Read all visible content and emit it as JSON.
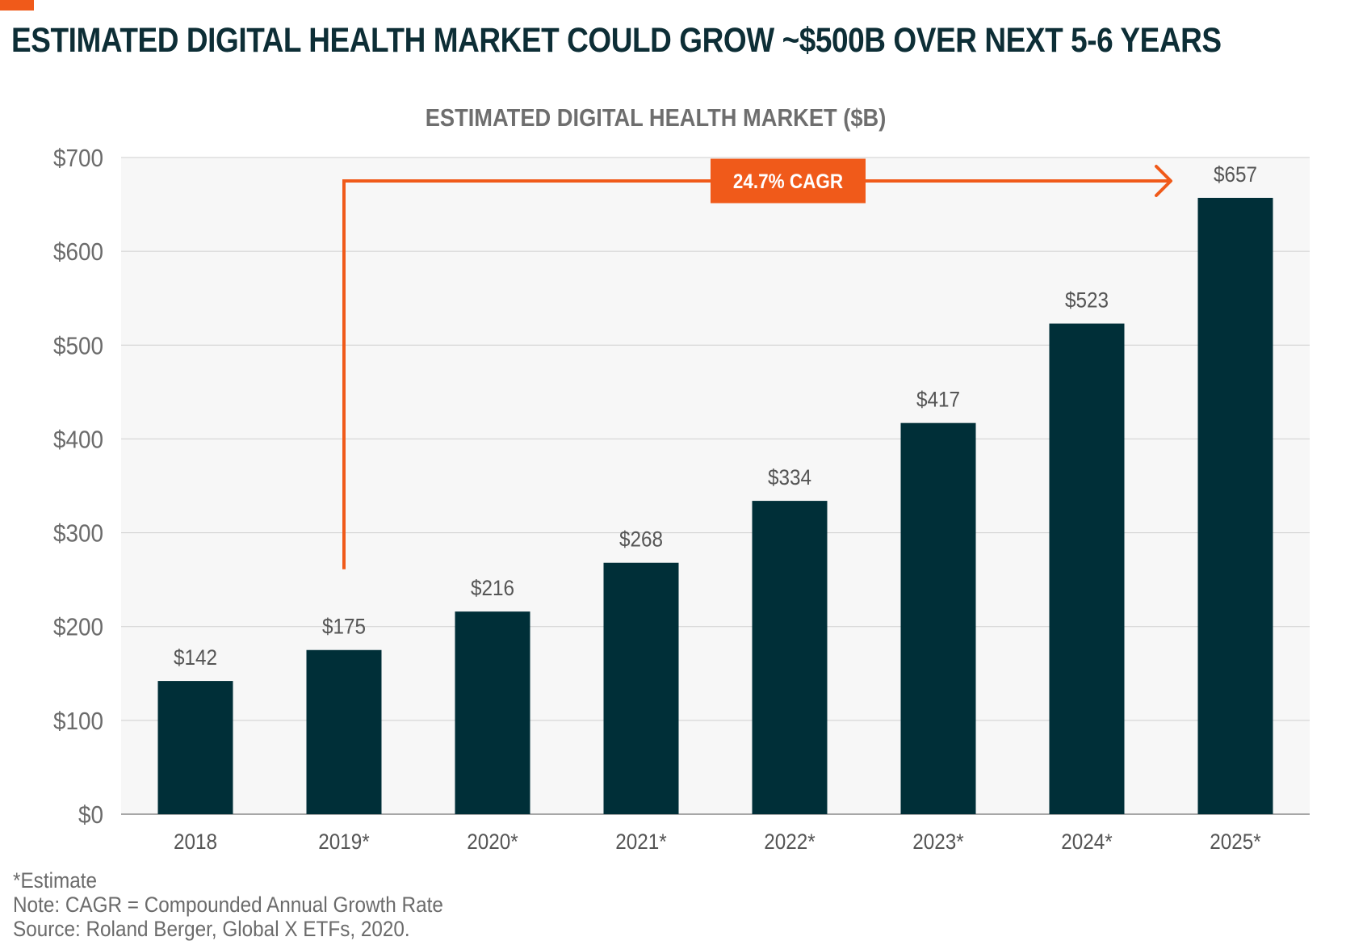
{
  "header": {
    "title": "ESTIMATED DIGITAL HEALTH MARKET COULD GROW ~$500B OVER NEXT 5-6 YEARS"
  },
  "colors": {
    "accent": "#f05a1a",
    "bar": "#002f38",
    "title": "#0d2e36",
    "gridline": "#cfcfcf",
    "plot_bg": "#f7f7f7"
  },
  "chart_data": {
    "type": "bar",
    "title": "ESTIMATED DIGITAL HEALTH MARKET ($B)",
    "xlabel": "",
    "ylabel": "",
    "categories": [
      "2018",
      "2019*",
      "2020*",
      "2021*",
      "2022*",
      "2023*",
      "2024*",
      "2025*"
    ],
    "values": [
      142,
      175,
      216,
      268,
      334,
      417,
      523,
      657
    ],
    "value_labels": [
      "$142",
      "$175",
      "$216",
      "$268",
      "$334",
      "$417",
      "$523",
      "$657"
    ],
    "ylim": [
      0,
      700
    ],
    "yticks": [
      0,
      100,
      200,
      300,
      400,
      500,
      600,
      700
    ],
    "ytick_labels": [
      "$0",
      "$100",
      "$200",
      "$300",
      "$400",
      "$500",
      "$600",
      "$700"
    ],
    "grid": true,
    "annotation": {
      "label": "24.7% CAGR",
      "from_category": "2019*",
      "to_category": "2025*"
    }
  },
  "footnotes": {
    "estimate": "*Estimate",
    "note": "Note: CAGR = Compounded Annual Growth Rate",
    "source": "Source: Roland Berger, Global X ETFs, 2020."
  }
}
